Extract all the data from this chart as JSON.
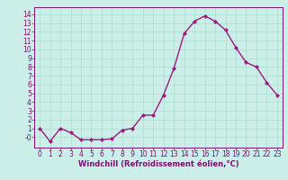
{
  "x": [
    0,
    1,
    2,
    3,
    4,
    5,
    6,
    7,
    8,
    9,
    10,
    11,
    12,
    13,
    14,
    15,
    16,
    17,
    18,
    19,
    20,
    21,
    22,
    23
  ],
  "y": [
    1,
    -0.5,
    1,
    0.5,
    -0.3,
    -0.3,
    -0.3,
    -0.2,
    0.8,
    1,
    2.5,
    2.5,
    4.8,
    7.8,
    11.8,
    13.2,
    13.8,
    13.2,
    12.2,
    10.2,
    8.5,
    8,
    6.2,
    4.8
  ],
  "line_color": "#9b1a7d",
  "marker": "D",
  "markersize": 2.2,
  "linewidth": 1.0,
  "background_color": "#cceee8",
  "grid_color": "#aaddcc",
  "xlabel": "Windchill (Refroidissement éolien,°C)",
  "xlim": [
    -0.5,
    23.5
  ],
  "ylim": [
    -1.2,
    14.8
  ],
  "yticks": [
    0,
    1,
    2,
    3,
    4,
    5,
    6,
    7,
    8,
    9,
    10,
    11,
    12,
    13,
    14
  ],
  "xticks": [
    0,
    1,
    2,
    3,
    4,
    5,
    6,
    7,
    8,
    9,
    10,
    11,
    12,
    13,
    14,
    15,
    16,
    17,
    18,
    19,
    20,
    21,
    22,
    23
  ],
  "tick_color": "#7a1070",
  "label_color": "#7a1070",
  "axis_color": "#7a1070",
  "font_size": 5.5,
  "xlabel_fontsize": 6.0
}
